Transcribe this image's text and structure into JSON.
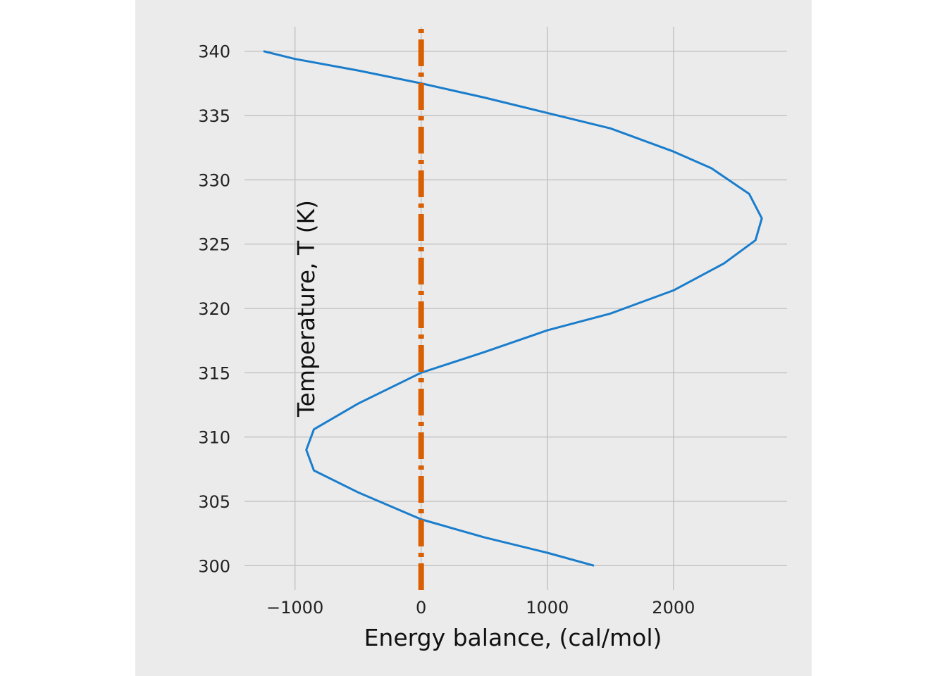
{
  "chart_data": {
    "type": "line",
    "title": "",
    "xlabel": "Energy balance, (cal/mol)",
    "ylabel": "Temperature,  T (K)",
    "xlim": [
      -1400,
      2900
    ],
    "ylim": [
      298.1,
      341.9
    ],
    "x_ticks": [
      -1000,
      0,
      1000,
      2000
    ],
    "x_tick_labels": [
      "−1000",
      "0",
      "1000",
      "2000"
    ],
    "y_ticks": [
      300,
      305,
      310,
      315,
      320,
      325,
      330,
      335,
      340
    ],
    "y_tick_labels": [
      "300",
      "305",
      "310",
      "315",
      "320",
      "325",
      "330",
      "335",
      "340"
    ],
    "grid": true,
    "background": "#ebebeb",
    "series": [
      {
        "kind": "solid",
        "color": "#1a7dcc",
        "x": [
          1370,
          1000,
          500,
          0,
          -500,
          -850,
          -910,
          -850,
          -500,
          0,
          500,
          1000,
          1500,
          2000,
          2400,
          2650,
          2700,
          2600,
          2300,
          2000,
          1500,
          1000,
          500,
          0,
          -500,
          -1000,
          -1250
        ],
        "y": [
          300,
          301,
          302.2,
          303.6,
          305.7,
          307.4,
          309,
          310.6,
          312.6,
          315,
          316.6,
          318.3,
          319.6,
          321.4,
          323.5,
          325.3,
          327,
          328.9,
          330.9,
          332.2,
          334,
          335.2,
          336.4,
          337.5,
          338.5,
          339.4,
          340
        ]
      },
      {
        "kind": "dash-dot",
        "color": "#d95f02",
        "x": [
          0,
          0
        ],
        "y": [
          298.1,
          341.9
        ]
      }
    ]
  }
}
